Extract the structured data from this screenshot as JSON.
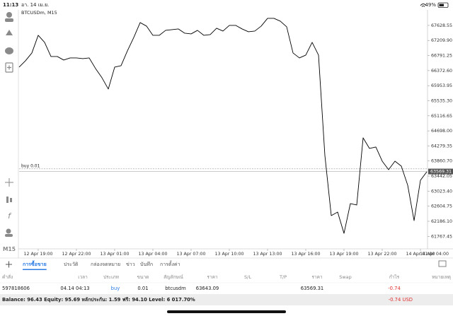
{
  "status_bar": {
    "time": "11:13",
    "date": "อา. 14 เม.ย.",
    "battery": "49%"
  },
  "toolbar": {
    "timeframe": "M15"
  },
  "chart_data": {
    "type": "line",
    "title": "BTCUSDm, M15",
    "color": "#000000",
    "categories": [
      null,
      null,
      null,
      "12 Apr 19:00",
      null,
      null,
      null,
      null,
      null,
      "12 Apr 22:00",
      null,
      null,
      null,
      null,
      null,
      "13 Apr 01:00",
      null,
      null,
      null,
      null,
      null,
      "13 Apr 04:00",
      null,
      null,
      null,
      null,
      null,
      "13 Apr 07:00",
      null,
      null,
      null,
      null,
      null,
      "13 Apr 10:00",
      null,
      null,
      null,
      null,
      null,
      "13 Apr 13:00",
      null,
      null,
      null,
      null,
      null,
      "13 Apr 16:00",
      null,
      null,
      null,
      null,
      null,
      "13 Apr 19:00",
      null,
      null,
      null,
      null,
      null,
      "13 Apr 22:00",
      null,
      null,
      null,
      null,
      null,
      "14 Apr 01:00",
      null
    ],
    "x_axis_edge_label": "14 Apr 04:00",
    "values": [
      66469,
      66646,
      66862,
      67353,
      67157,
      66764,
      66764,
      66666,
      66725,
      66725,
      66705,
      66725,
      66430,
      66175,
      65860,
      66469,
      66509,
      66921,
      67295,
      67707,
      67609,
      67353,
      67353,
      67491,
      67511,
      67530,
      67412,
      67393,
      67491,
      67353,
      67373,
      67550,
      67471,
      67629,
      67629,
      67530,
      67452,
      67471,
      67609,
      67825,
      67825,
      67746,
      67589,
      66862,
      66725,
      66804,
      67157,
      66804,
      64013,
      62343,
      62441,
      61851,
      62677,
      62638,
      64504,
      64210,
      64249,
      63856,
      63620,
      63856,
      63718,
      63188,
      62205,
      63325,
      63561
    ],
    "ylim": [
      61420,
      68020
    ],
    "yticks": [
      67628.55,
      {
        "value": 67209.9,
        "label": "67209.90"
      },
      66791.25,
      {
        "value": 66372.6,
        "label": "66372.60"
      },
      65953.95,
      {
        "value": 65535.3,
        "label": "65535.30"
      },
      65116.65,
      {
        "value": 64698,
        "label": "64698.00"
      },
      64279.35,
      {
        "value": 63860.7,
        "label": "63860.70"
      },
      63442.05,
      {
        "value": 63023.4,
        "label": "63023.40"
      },
      62604.75,
      {
        "value": 62186.1,
        "label": "62186.10"
      },
      61767.45
    ],
    "order_line": {
      "label": "buy 0.01",
      "value": 63643.09
    },
    "current_price": 63569.31,
    "grid": false
  },
  "tabs": [
    "การซื้อขาย",
    "ประวัติ",
    "กล่องจดหมาย",
    "ข่าว",
    "บันทึก",
    "การตั้งค่า"
  ],
  "table": {
    "columns": [
      "คำสั่ง",
      "เวลา",
      "ประเภท",
      "ขนาด",
      "สัญลักษณ์",
      "ราคา",
      "S/L",
      "T/P",
      "ราคา",
      "Swap",
      "กำไร",
      "หมายเหตุ"
    ],
    "row": {
      "order": "597818606",
      "time": "04.14 04:13",
      "type": "buy",
      "volume": "0.01",
      "symbol": "btcusdm",
      "price": "63643.09",
      "current_price": "63569.31",
      "profit": "-0.74"
    }
  },
  "summary": {
    "text": "Balance: 96.43 Equity: 95.69 หลักประกัน: 1.59 ฟรี: 94.10 Level: 6 017.70%",
    "profit": "-0.74 USD"
  }
}
